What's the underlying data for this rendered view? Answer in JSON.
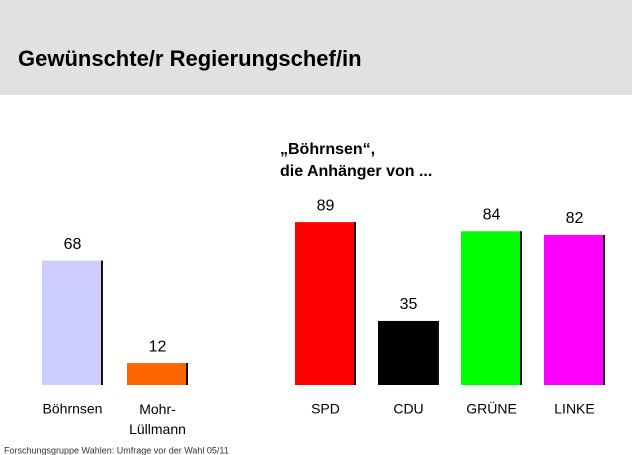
{
  "header": {
    "title": "Gewünschte/r Regierungschef/in"
  },
  "chart_data": [
    {
      "type": "bar",
      "categories": [
        "Böhrnsen",
        "Mohr-Lüllmann"
      ],
      "values": [
        68,
        12
      ],
      "colors": [
        "#ccccff",
        "#ff6600"
      ]
    },
    {
      "type": "bar",
      "title": "„Böhrnsen“, die Anhänger von ...",
      "categories": [
        "SPD",
        "CDU",
        "GRÜNE",
        "LINKE"
      ],
      "values": [
        89,
        35,
        84,
        82
      ],
      "colors": [
        "#ff0000",
        "#000000",
        "#00ff00",
        "#ff00ff"
      ]
    }
  ],
  "source": "Forschungsgruppe Wahlen: Umfrage vor der Wahl 05/11"
}
